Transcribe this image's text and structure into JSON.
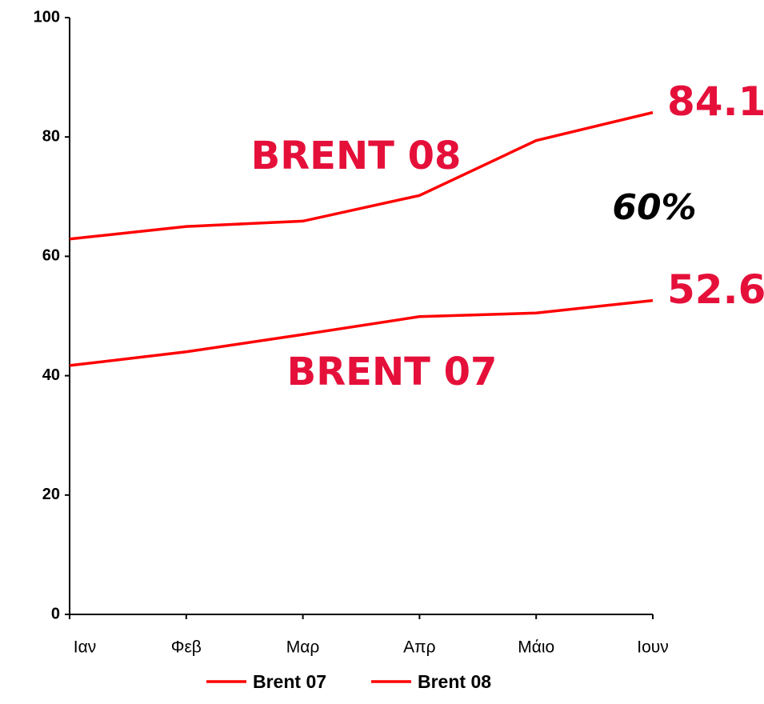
{
  "chart_data": {
    "type": "line",
    "categories": [
      "Ιαν",
      "Φεβ",
      "Μαρ",
      "Απρ",
      "Μάιο",
      "Ιουν"
    ],
    "series": [
      {
        "name": "Brent 07",
        "color": "#ff0000",
        "values": [
          41.7,
          44.0,
          46.9,
          49.9,
          50.5,
          52.6
        ]
      },
      {
        "name": "Brent 08",
        "color": "#ff0000",
        "values": [
          62.9,
          65.0,
          65.9,
          70.2,
          79.4,
          84.1
        ]
      }
    ],
    "ylim": [
      0,
      100
    ],
    "yticks": [
      0,
      20,
      40,
      60,
      80,
      100
    ],
    "grid": false,
    "legend": "bottom",
    "annotations": [
      "BRENT 08",
      "BRENT 07",
      "60%"
    ]
  }
}
